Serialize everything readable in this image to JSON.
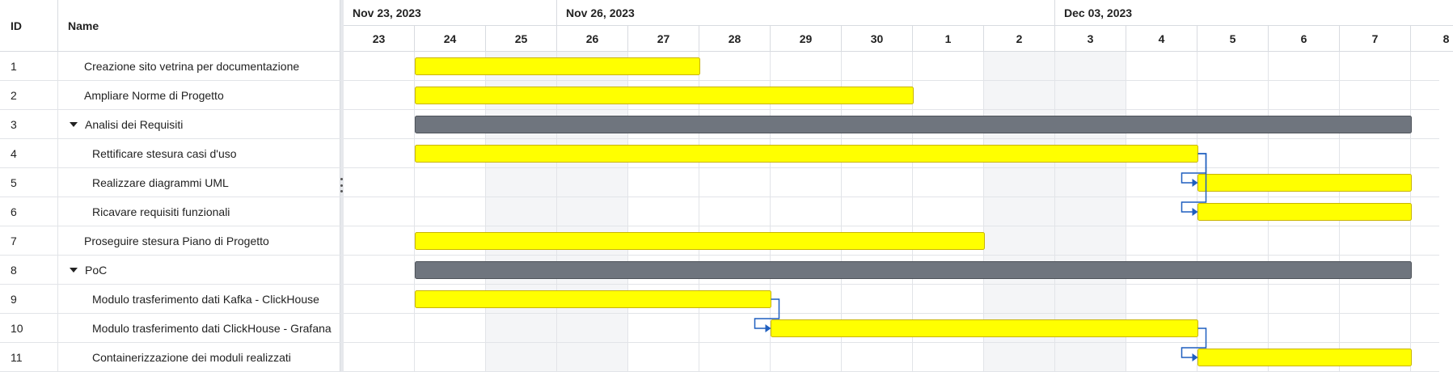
{
  "grid": {
    "columns": {
      "id": "ID",
      "name": "Name"
    },
    "rows": [
      {
        "id": "1",
        "name": "Creazione sito vetrina per documentazione",
        "level": 1,
        "parent": false
      },
      {
        "id": "2",
        "name": "Ampliare Norme di Progetto",
        "level": 1,
        "parent": false
      },
      {
        "id": "3",
        "name": "Analisi dei Requisiti",
        "level": 0,
        "parent": true
      },
      {
        "id": "4",
        "name": "Rettificare stesura casi d'uso",
        "level": 2,
        "parent": false
      },
      {
        "id": "5",
        "name": "Realizzare diagrammi UML",
        "level": 2,
        "parent": false
      },
      {
        "id": "6",
        "name": "Ricavare requisiti funzionali",
        "level": 2,
        "parent": false
      },
      {
        "id": "7",
        "name": "Proseguire stesura Piano di Progetto",
        "level": 1,
        "parent": false
      },
      {
        "id": "8",
        "name": "PoC",
        "level": 0,
        "parent": true
      },
      {
        "id": "9",
        "name": "Modulo trasferimento dati Kafka - ClickHouse",
        "level": 2,
        "parent": false
      },
      {
        "id": "10",
        "name": "Modulo trasferimento dati ClickHouse - Grafana",
        "level": 2,
        "parent": false
      },
      {
        "id": "11",
        "name": "Containerizzazione dei moduli realizzati",
        "level": 2,
        "parent": false
      }
    ]
  },
  "timeline": {
    "months": [
      {
        "label": "Nov 23, 2023",
        "start": 0,
        "span": 3
      },
      {
        "label": "Nov 26, 2023",
        "start": 3,
        "span": 7
      },
      {
        "label": "Dec 03, 2023",
        "start": 10,
        "span": 6
      }
    ],
    "days": [
      "23",
      "24",
      "25",
      "26",
      "27",
      "28",
      "29",
      "30",
      "1",
      "2",
      "3",
      "4",
      "5",
      "6",
      "7",
      "8"
    ],
    "weekend_days": [
      2,
      3,
      9,
      10
    ]
  },
  "tasks": [
    {
      "row": 0,
      "start": 1,
      "end": 5,
      "type": "task"
    },
    {
      "row": 1,
      "start": 1,
      "end": 8,
      "type": "task"
    },
    {
      "row": 2,
      "start": 1,
      "end": 15,
      "type": "project"
    },
    {
      "row": 3,
      "start": 1,
      "end": 12,
      "type": "task"
    },
    {
      "row": 4,
      "start": 12,
      "end": 15,
      "type": "task"
    },
    {
      "row": 5,
      "start": 12,
      "end": 15,
      "type": "task"
    },
    {
      "row": 6,
      "start": 1,
      "end": 9,
      "type": "task"
    },
    {
      "row": 7,
      "start": 1,
      "end": 15,
      "type": "project"
    },
    {
      "row": 8,
      "start": 1,
      "end": 6,
      "type": "task"
    },
    {
      "row": 9,
      "start": 6,
      "end": 12,
      "type": "task"
    },
    {
      "row": 10,
      "start": 12,
      "end": 15,
      "type": "task"
    }
  ],
  "links": [
    {
      "from": 3,
      "to": 4
    },
    {
      "from": 3,
      "to": 5
    },
    {
      "from": 8,
      "to": 9
    },
    {
      "from": 9,
      "to": 10
    }
  ],
  "colors": {
    "task_fill": "#ffff00",
    "task_border": "#c9b400",
    "project_fill": "#6f757e",
    "project_border": "#4e535a",
    "link": "#1f5fbf",
    "weekend": "#f4f5f7",
    "gridline": "#e2e4e8"
  }
}
